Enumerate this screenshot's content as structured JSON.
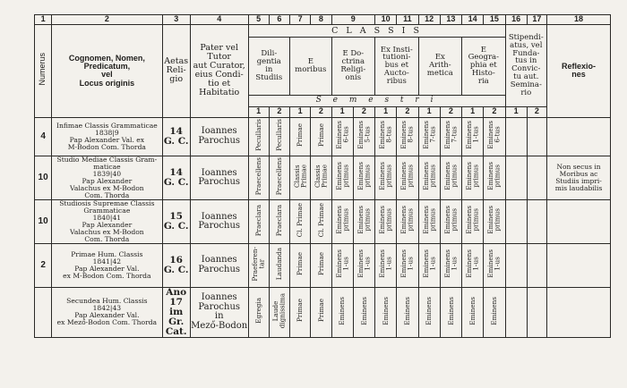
{
  "colnums": [
    "1",
    "2",
    "3",
    "4",
    "5",
    "6",
    "7",
    "8",
    "9",
    "10",
    "11",
    "12",
    "13",
    "14",
    "15",
    "16",
    "17",
    "18"
  ],
  "headers": {
    "numerus": "Numerus",
    "cognomen": "Cognomen, Nomen,\nPredicatum,\nvel\nLocus originis",
    "aetas": "Aetas\nReli-\ngio",
    "pater": "Pater vel\nTutor\naut Curator,\neius Condi-\ntio et\nHabitatio",
    "classis": "C L A S S I S",
    "diligentia": "Dili-\ngentia\nin\nStudiis",
    "moribus": "E\nmoribus",
    "doctrina": "E Do-\nctrina\nReligi-\nonis",
    "institutionibus": "Ex Insti-\ntutioni-\nbus et\nAucto-\nribus",
    "arithmetica": "Ex\nArith-\nmetica",
    "geographia": "E\nGeogra-\nphia et\nHisto-\nria",
    "stipendiatus": "Stipendi-\natus, vel\nFunda-\ntus in\nConvic-\ntu aut.\nSeminа-\nrio",
    "reflexiones": "Reflexio-\nnes",
    "semestri": "S e m e s t r i",
    "sem_nums": [
      "1",
      "2",
      "1",
      "2",
      "1",
      "2",
      "1",
      "2",
      "1",
      "2",
      "1",
      "2",
      "1",
      "2"
    ]
  },
  "rows": [
    {
      "num": "4",
      "name": "Infimae Classis Grammaticae\n1838|9\nPap Alexander Val. ex\nM-Bodon Com. Thorda",
      "age": "14\nG. C.",
      "tutor": "Ioannes\nParochus",
      "grades": [
        "Pecullaris",
        "Pecullaris",
        "Primae",
        "Primae",
        "Eminens\n6-tus",
        "Eminens\n5-tus",
        "Eminens\n8-tus",
        "Eminens\n8-tus",
        "Eminens\n7-tus",
        "Eminens\n7-tus",
        "Eminens\n1-tus",
        "Eminens\n6-tus"
      ],
      "stip1": "",
      "stip2": "",
      "refl": ""
    },
    {
      "num": "10",
      "name": "Studio Mediae Classis Gram-\nmaticae\n1839|40\nPap Alexander\nValachus ex M-Bodon\nCom. Thorda",
      "age": "14\nG. C.",
      "tutor": "Ioannes\nParochus",
      "grades": [
        "Praecellens",
        "Praecellens",
        "Classis\nPrimae",
        "Classis\nPrimae",
        "Eminens\nprimus",
        "Eminens\nprimus",
        "Eminens\nprimus",
        "Eminens\nprimus",
        "Eminens\nprimus",
        "Eminens\nprimus",
        "Eminens\nprimus",
        "Eminens\nprimus"
      ],
      "stip1": "",
      "stip2": "",
      "refl": "Non secus in\nMoribus ac\nStudiis impri-\nmis laudabilis"
    },
    {
      "num": "10",
      "name": "Studiosis Supremae Classis\nGrammaticae\n1840|41\nPap Alexander\nValachus ex M-Bodon\nCom. Thorda",
      "age": "15\nG. C.",
      "tutor": "Ioannes\nParochus",
      "grades": [
        "Praeclara",
        "Praeclara",
        "Cl. Primae",
        "Cl. Primae",
        "Eminens\nprimus",
        "Eminens\nprimus",
        "Eminens\nprimus",
        "Eminens\nprimus",
        "Eminens\nprimus",
        "Eminens\nprimus",
        "Eminens\nprimus",
        "Eminens\nprimus"
      ],
      "stip1": "",
      "stip2": "",
      "refl": ""
    },
    {
      "num": "2",
      "name": "Primae Hum. Classis\n1841|42\nPap Alexander Val.\nex M-Bodon Com. Thorda",
      "age": "16\nG. C.",
      "tutor": "Ioannes\nParochus",
      "grades": [
        "Praeferen-\ntar",
        "Laudanda",
        "Primae",
        "Primae",
        "Eminens\n1-us",
        "Eminens\n1-us",
        "Eminens\n1-us",
        "Eminens\n1-us",
        "Eminens\n1-us",
        "Eminens\n1-us",
        "Eminens\n1-us",
        "Eminens\n1-us"
      ],
      "stip1": "",
      "stip2": "",
      "refl": ""
    },
    {
      "num": "",
      "name": "Secundea Hum. Classis\n1842|43\nPap Alexander Val.\nex Mező-Bodon Com. Thorda",
      "age": "Ano\n17 im\nGr. Cat.",
      "tutor": "Ioannes\nParochus\nin\nMező-Bodon",
      "grades": [
        "Egregia",
        "Laude\ndignissima",
        "Primae",
        "Primae",
        "Eminens",
        "Eminens",
        "Eminens",
        "Eminens",
        "Eminens",
        "Eminens",
        "Eminens",
        "Eminens"
      ],
      "stip1": "",
      "stip2": "",
      "refl": ""
    }
  ]
}
